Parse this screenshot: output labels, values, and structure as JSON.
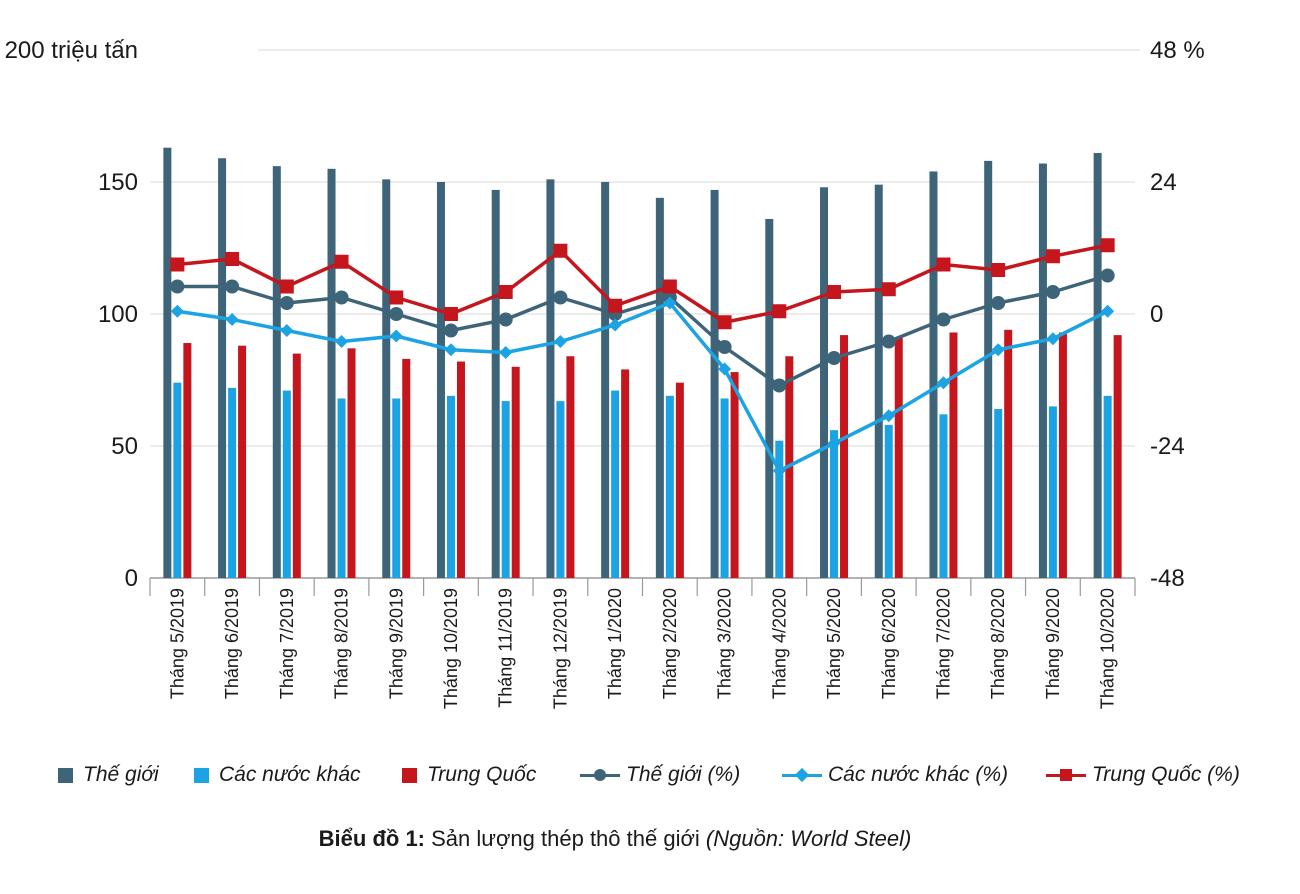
{
  "colors": {
    "world": "#3d6478",
    "others": "#1ba3e3",
    "china": "#c4161c",
    "grid": "#e6e6e6",
    "axis": "#9a9a9a"
  },
  "legend": {
    "world": "Thế giới",
    "others": "Các nước khác",
    "china": "Trung Quốc",
    "world_pct": "Thế giới (%)",
    "others_pct": "Các nước khác (%)",
    "china_pct": "Trung Quốc (%)"
  },
  "caption": {
    "bold": "Biểu đồ 1:",
    "text": " Sản lượng thép thô thế giới ",
    "italic": "(Nguồn: World Steel)"
  },
  "chart_data": {
    "type": "bar",
    "categories": [
      "Tháng 5/2019",
      "Tháng 6/2019",
      "Tháng 7/2019",
      "Tháng 8/2019",
      "Tháng 9/2019",
      "Tháng 10/2019",
      "Tháng 11/2019",
      "Tháng 12/2019",
      "Tháng 1/2020",
      "Tháng 2/2020",
      "Tháng 3/2020",
      "Tháng 4/2020",
      "Tháng 5/2020",
      "Tháng 6/2020",
      "Tháng 7/2020",
      "Tháng 8/2020",
      "Tháng 9/2020",
      "Tháng 10/2020"
    ],
    "left_axis": {
      "ylim": [
        0,
        200
      ],
      "ticks": [
        "0",
        "50",
        "100",
        "150",
        "200 triệu tấn"
      ],
      "tick_values": [
        0,
        50,
        100,
        150,
        200
      ]
    },
    "right_axis": {
      "ylim": [
        -48,
        48
      ],
      "ticks": [
        "-48",
        "-24",
        "0",
        "24",
        "48 %"
      ],
      "tick_values": [
        -48,
        -24,
        0,
        24,
        48
      ]
    },
    "bar_series": [
      {
        "name": "Thế giới",
        "values": [
          163,
          159,
          156,
          155,
          151,
          150,
          147,
          151,
          150,
          144,
          147,
          136,
          148,
          149,
          154,
          158,
          157,
          161
        ]
      },
      {
        "name": "Các nước khác",
        "values": [
          74,
          72,
          71,
          68,
          68,
          69,
          67,
          67,
          71,
          69,
          68,
          52,
          56,
          58,
          62,
          64,
          65,
          69
        ]
      },
      {
        "name": "Trung Quốc",
        "values": [
          89,
          88,
          85,
          87,
          83,
          82,
          80,
          84,
          79,
          74,
          78,
          84,
          92,
          91,
          93,
          94,
          93,
          92
        ]
      }
    ],
    "line_series": [
      {
        "name": "Thế giới (%)",
        "axis": "right",
        "values": [
          5,
          5,
          2,
          3,
          0,
          -3,
          -1,
          3,
          0,
          3,
          -6,
          -13,
          -8,
          -5,
          -1,
          2,
          4,
          7
        ]
      },
      {
        "name": "Các nước khác (%)",
        "axis": "right",
        "values": [
          0.5,
          -1,
          -3,
          -5,
          -4,
          -6.5,
          -7,
          -5,
          -2,
          2,
          -10,
          -28.5,
          -23.5,
          -18.5,
          -12.5,
          -6.5,
          -4.5,
          0.5
        ]
      },
      {
        "name": "Trung Quốc (%)",
        "axis": "right",
        "values": [
          9,
          10,
          5,
          9.5,
          3,
          0,
          4,
          11.5,
          1.5,
          5,
          -1.5,
          0.5,
          4,
          4.5,
          9,
          8,
          10.5,
          12.5
        ]
      }
    ],
    "grid": true
  }
}
